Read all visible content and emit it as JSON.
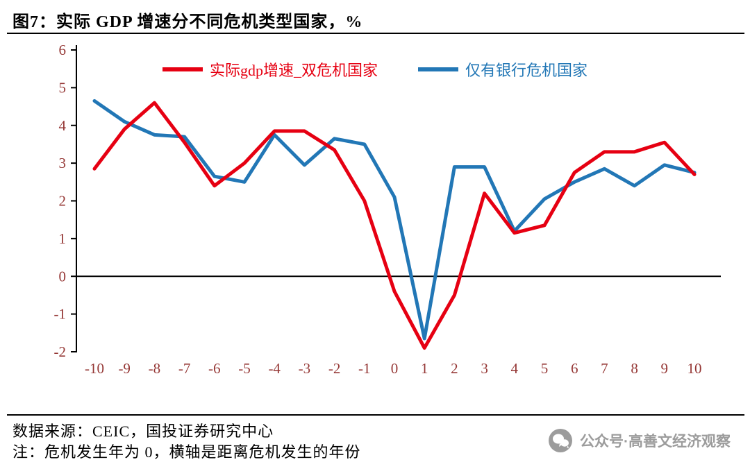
{
  "title": "图7：实际 GDP 增速分不同危机类型国家，%",
  "footer": {
    "source": "数据来源：CEIC，国投证券研究中心",
    "note": "注：危机发生年为 0，横轴是距离危机发生的年份"
  },
  "watermark": {
    "label": "公众号·高善文经济观察",
    "icon": "wechat-official-account-icon"
  },
  "colors": {
    "red": "#E60012",
    "blue": "#2277B6",
    "axis_label": "#953735",
    "axis_line": "#000000",
    "watermark_gray": "#9C9C9C"
  },
  "chart_data": {
    "type": "line",
    "title": "实际 GDP 增速分不同危机类型国家，%",
    "x": [
      -10,
      -9,
      -8,
      -7,
      -6,
      -5,
      -4,
      -3,
      -2,
      -1,
      0,
      1,
      2,
      3,
      4,
      5,
      6,
      7,
      8,
      9,
      10
    ],
    "series": [
      {
        "name": "实际gdp增速_双危机国家",
        "color": "red",
        "values": [
          2.85,
          3.9,
          4.6,
          3.55,
          2.4,
          3.0,
          3.85,
          3.85,
          3.35,
          2.0,
          -0.4,
          -1.9,
          -0.5,
          2.2,
          1.15,
          1.35,
          2.75,
          3.3,
          3.3,
          3.55,
          2.7
        ]
      },
      {
        "name": "仅有银行危机国家",
        "color": "blue",
        "values": [
          4.65,
          4.1,
          3.75,
          3.7,
          2.65,
          2.5,
          3.75,
          2.95,
          3.65,
          3.5,
          2.1,
          -1.65,
          2.9,
          2.9,
          1.2,
          2.05,
          2.5,
          2.85,
          2.4,
          2.95,
          2.75
        ]
      }
    ],
    "xlabel": "",
    "ylabel": "",
    "ylim": [
      -2,
      6
    ],
    "yticks": [
      6,
      5,
      4,
      3,
      2,
      1,
      0,
      -1,
      -2
    ],
    "xticks": [
      -10,
      -9,
      -8,
      -7,
      -6,
      -5,
      -4,
      -3,
      -2,
      -1,
      0,
      1,
      2,
      3,
      4,
      5,
      6,
      7,
      8,
      9,
      10
    ],
    "grid": false,
    "legend_position": "top-center"
  }
}
